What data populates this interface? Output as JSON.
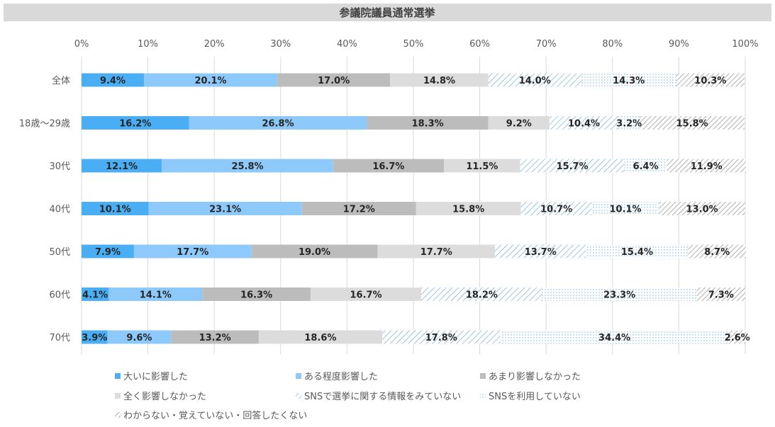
{
  "chart_data": {
    "type": "bar",
    "orientation": "horizontal",
    "stacked": "percent",
    "title": "参議院議員通常選挙",
    "xlim": [
      0,
      100
    ],
    "x_ticks": [
      "0%",
      "10%",
      "20%",
      "30%",
      "40%",
      "50%",
      "60%",
      "70%",
      "80%",
      "90%",
      "100%"
    ],
    "grid": true,
    "legend_position": "bottom",
    "categories": [
      "全体",
      "18歳～29歳",
      "30代",
      "40代",
      "50代",
      "60代",
      "70代"
    ],
    "series": [
      {
        "name": "大いに影響した",
        "color": "#4aaef5",
        "pattern": "solid",
        "values": [
          9.4,
          16.2,
          12.1,
          10.1,
          7.9,
          4.1,
          3.9
        ]
      },
      {
        "name": "ある程度影響した",
        "color": "#8ec9fb",
        "pattern": "solid",
        "values": [
          20.1,
          26.8,
          25.8,
          23.1,
          17.7,
          14.1,
          9.6
        ]
      },
      {
        "name": "あまり影響しなかった",
        "color": "#bcbcbc",
        "pattern": "solid",
        "values": [
          17.0,
          18.3,
          16.7,
          17.2,
          19.0,
          16.3,
          13.2
        ]
      },
      {
        "name": "全く影響しなかった",
        "color": "#dcdcdc",
        "pattern": "solid",
        "values": [
          14.8,
          9.2,
          11.5,
          15.8,
          17.7,
          16.7,
          18.6
        ]
      },
      {
        "name": "SNSで選挙に関する情報をみていない",
        "color": "#5aa6d8",
        "pattern": "diagonal",
        "values": [
          14.0,
          10.4,
          15.7,
          10.7,
          13.7,
          18.2,
          17.8
        ]
      },
      {
        "name": "SNSを利用していない",
        "color": "#6fb3e0",
        "pattern": "dots",
        "values": [
          14.3,
          3.2,
          6.4,
          10.1,
          15.4,
          23.3,
          34.4
        ]
      },
      {
        "name": "わからない・覚えていない・回答したくない",
        "color": "#a0a0a0",
        "pattern": "hatch",
        "values": [
          10.3,
          15.8,
          11.9,
          13.0,
          8.7,
          7.3,
          2.6
        ]
      }
    ]
  }
}
